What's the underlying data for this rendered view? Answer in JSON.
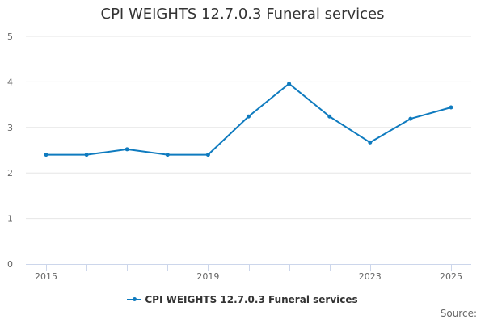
{
  "chart_data": {
    "type": "line",
    "title": "CPI WEIGHTS 12.7.0.3 Funeral services",
    "x": [
      2015,
      2016,
      2017,
      2018,
      2019,
      2020,
      2021,
      2022,
      2023,
      2024,
      2025
    ],
    "x_tick_labels": [
      "2015",
      "2019",
      "2023",
      "2025"
    ],
    "x_tick_values": [
      2015,
      2019,
      2023,
      2025
    ],
    "series": [
      {
        "name": "CPI WEIGHTS 12.7.0.3 Funeral services",
        "values": [
          2.4,
          2.4,
          2.52,
          2.4,
          2.4,
          3.24,
          3.96,
          3.24,
          2.67,
          3.19,
          3.44
        ],
        "color": "#0f7bbf"
      }
    ],
    "ylim": [
      0,
      5
    ],
    "y_ticks": [
      0,
      1,
      2,
      3,
      4,
      5
    ],
    "grid": true,
    "legend_position": "bottom",
    "xlabel": "",
    "ylabel": ""
  },
  "source_label": "Source:"
}
